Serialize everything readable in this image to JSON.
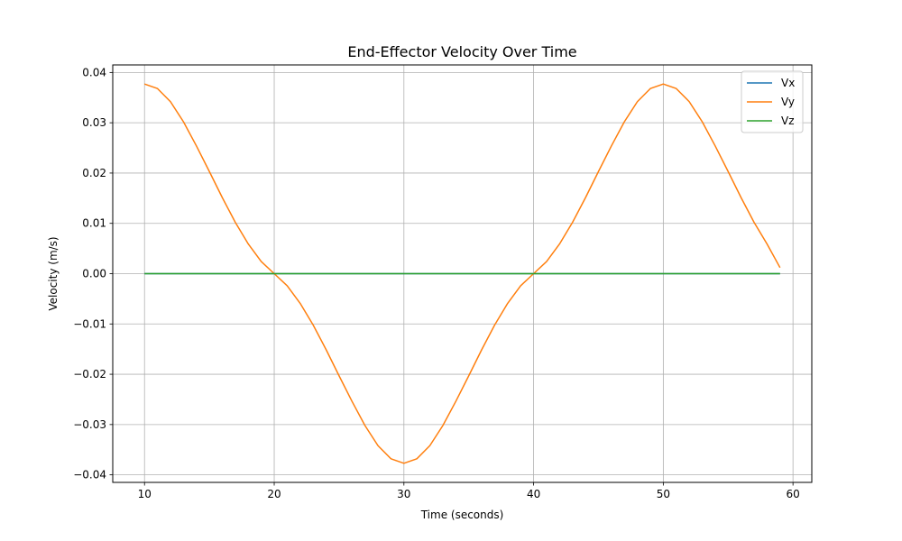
{
  "chart_data": {
    "type": "line",
    "title": "End-Effector Velocity Over Time",
    "xlabel": "Time (seconds)",
    "ylabel": "Velocity (m/s)",
    "xlim": [
      7.55,
      61.45
    ],
    "ylim": [
      -0.0415,
      0.0415
    ],
    "x_ticks": [
      10,
      20,
      30,
      40,
      50,
      60
    ],
    "y_ticks": [
      -0.04,
      -0.03,
      -0.02,
      -0.01,
      0.0,
      0.01,
      0.02,
      0.03,
      0.04
    ],
    "x_tick_labels": [
      "10",
      "20",
      "30",
      "40",
      "50",
      "60"
    ],
    "y_tick_labels": [
      "−0.04",
      "−0.03",
      "−0.02",
      "−0.01",
      "0.00",
      "0.01",
      "0.02",
      "0.03",
      "0.04"
    ],
    "grid": true,
    "legend_position": "top-right",
    "x": [
      10,
      11,
      12,
      13,
      14,
      15,
      16,
      17,
      18,
      19,
      20,
      21,
      22,
      23,
      24,
      25,
      26,
      27,
      28,
      29,
      30,
      31,
      32,
      33,
      34,
      35,
      36,
      37,
      38,
      39,
      40,
      41,
      42,
      43,
      44,
      45,
      46,
      47,
      48,
      49,
      50,
      51,
      52,
      53,
      54,
      55,
      56,
      57,
      58,
      59
    ],
    "series": [
      {
        "name": "Vx",
        "color": "#1f77b4",
        "values": [
          0,
          0,
          0,
          0,
          0,
          0,
          0,
          0,
          0,
          0,
          0,
          0,
          0,
          0,
          0,
          0,
          0,
          0,
          0,
          0,
          0,
          0,
          0,
          0,
          0,
          0,
          0,
          0,
          0,
          0,
          0,
          0,
          0,
          0,
          0,
          0,
          0,
          0,
          0,
          0,
          0,
          0,
          0,
          0,
          0,
          0,
          0,
          0,
          0,
          0
        ]
      },
      {
        "name": "Vy",
        "color": "#ff7f0e",
        "values": [
          0.0377,
          0.0368,
          0.0342,
          0.0302,
          0.0254,
          0.0203,
          0.0151,
          0.0102,
          0.0059,
          0.0024,
          0.0,
          -0.0024,
          -0.0059,
          -0.0102,
          -0.0151,
          -0.0203,
          -0.0254,
          -0.0302,
          -0.0342,
          -0.0368,
          -0.0377,
          -0.0368,
          -0.0342,
          -0.0302,
          -0.0254,
          -0.0203,
          -0.0151,
          -0.0102,
          -0.0059,
          -0.0024,
          0.0,
          0.0024,
          0.0059,
          0.0102,
          0.0151,
          0.0203,
          0.0254,
          0.0302,
          0.0342,
          0.0368,
          0.0377,
          0.0368,
          0.0342,
          0.0302,
          0.0254,
          0.0203,
          0.0151,
          0.0102,
          0.0059,
          0.0012
        ]
      },
      {
        "name": "Vz",
        "color": "#2ca02c",
        "values": [
          0,
          0,
          0,
          0,
          0,
          0,
          0,
          0,
          0,
          0,
          0,
          0,
          0,
          0,
          0,
          0,
          0,
          0,
          0,
          0,
          0,
          0,
          0,
          0,
          0,
          0,
          0,
          0,
          0,
          0,
          0,
          0,
          0,
          0,
          0,
          0,
          0,
          0,
          0,
          0,
          0,
          0,
          0,
          0,
          0,
          0,
          0,
          0,
          0,
          0
        ]
      }
    ]
  }
}
